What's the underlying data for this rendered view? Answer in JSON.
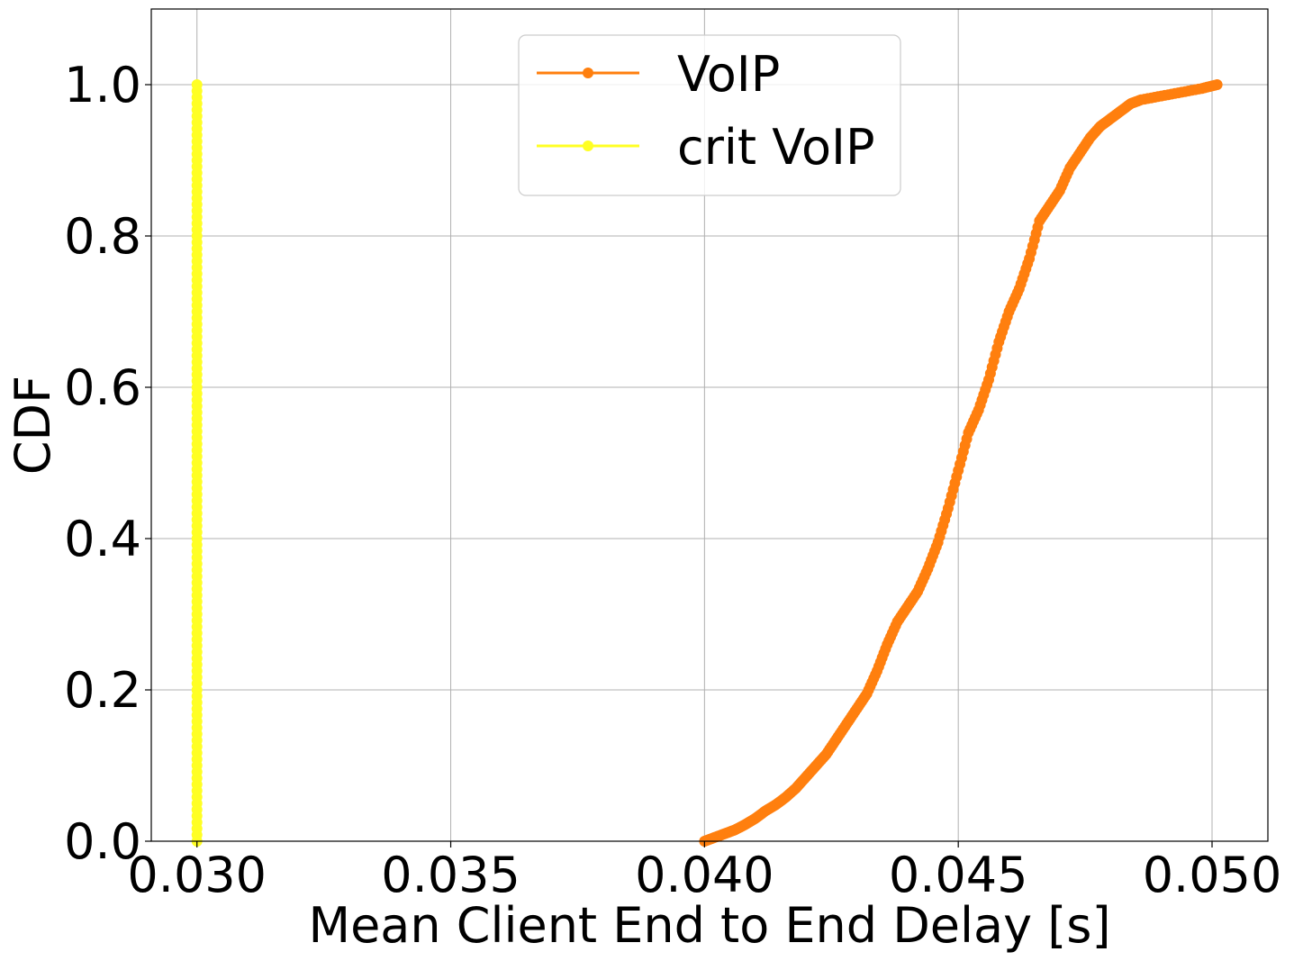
{
  "chart_data": {
    "type": "line",
    "title": "",
    "xlabel": "Mean Client End to End Delay [s]",
    "ylabel": "CDF",
    "xlim": [
      0.0291,
      0.0511
    ],
    "ylim": [
      0.0,
      1.1
    ],
    "x_ticks": [
      0.03,
      0.035,
      0.04,
      0.045,
      0.05
    ],
    "x_tick_labels": [
      "0.030",
      "0.035",
      "0.040",
      "0.045",
      "0.050"
    ],
    "y_ticks": [
      0.0,
      0.2,
      0.4,
      0.6,
      0.8,
      1.0
    ],
    "y_tick_labels": [
      "0.0",
      "0.2",
      "0.4",
      "0.6",
      "0.8",
      "1.0"
    ],
    "grid": true,
    "legend_position": "top-center",
    "series": [
      {
        "name": "VoIP",
        "color": "#ff7f0e",
        "marker": "circle",
        "points": [
          [
            0.04,
            0.0
          ],
          [
            0.0402,
            0.005
          ],
          [
            0.0404,
            0.01
          ],
          [
            0.0406,
            0.015
          ],
          [
            0.0408,
            0.022
          ],
          [
            0.041,
            0.03
          ],
          [
            0.0412,
            0.04
          ],
          [
            0.0414,
            0.048
          ],
          [
            0.0416,
            0.058
          ],
          [
            0.0418,
            0.07
          ],
          [
            0.042,
            0.085
          ],
          [
            0.0422,
            0.1
          ],
          [
            0.0424,
            0.115
          ],
          [
            0.0426,
            0.135
          ],
          [
            0.0428,
            0.155
          ],
          [
            0.043,
            0.175
          ],
          [
            0.0432,
            0.195
          ],
          [
            0.0434,
            0.225
          ],
          [
            0.0436,
            0.26
          ],
          [
            0.0438,
            0.29
          ],
          [
            0.044,
            0.31
          ],
          [
            0.0442,
            0.33
          ],
          [
            0.0444,
            0.36
          ],
          [
            0.0446,
            0.395
          ],
          [
            0.0448,
            0.44
          ],
          [
            0.045,
            0.49
          ],
          [
            0.0452,
            0.54
          ],
          [
            0.0454,
            0.57
          ],
          [
            0.0456,
            0.61
          ],
          [
            0.0458,
            0.66
          ],
          [
            0.046,
            0.7
          ],
          [
            0.0462,
            0.73
          ],
          [
            0.0464,
            0.77
          ],
          [
            0.0466,
            0.82
          ],
          [
            0.0468,
            0.84
          ],
          [
            0.047,
            0.86
          ],
          [
            0.0472,
            0.89
          ],
          [
            0.0474,
            0.91
          ],
          [
            0.0476,
            0.93
          ],
          [
            0.0478,
            0.945
          ],
          [
            0.048,
            0.955
          ],
          [
            0.0482,
            0.965
          ],
          [
            0.0484,
            0.975
          ],
          [
            0.0486,
            0.98
          ],
          [
            0.049,
            0.985
          ],
          [
            0.0494,
            0.99
          ],
          [
            0.0498,
            0.995
          ],
          [
            0.0501,
            1.0
          ]
        ]
      },
      {
        "name": "crit VoIP",
        "color": "#ffff24",
        "marker": "circle",
        "x_constant": 0.03,
        "y_range": [
          0.0,
          1.0
        ]
      }
    ]
  }
}
